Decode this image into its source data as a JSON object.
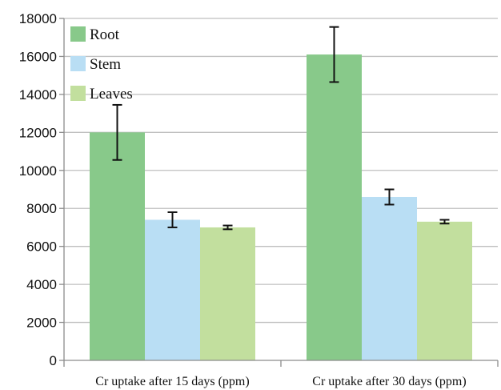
{
  "chart_data": {
    "type": "bar",
    "categories": [
      "Cr uptake after 15 days (ppm)",
      "Cr uptake after 30 days (ppm)"
    ],
    "series": [
      {
        "name": "Root",
        "values": [
          12000,
          16100
        ],
        "errors": [
          1450,
          1450
        ],
        "color": "#88c98a"
      },
      {
        "name": "Stem",
        "values": [
          7400,
          8600
        ],
        "errors": [
          400,
          400
        ],
        "color": "#b9def4"
      },
      {
        "name": "Leaves",
        "values": [
          7000,
          7300
        ],
        "errors": [
          100,
          100
        ],
        "color": "#c2df9e"
      }
    ],
    "ylim": [
      0,
      18000
    ],
    "yticks": [
      0,
      2000,
      4000,
      6000,
      8000,
      10000,
      12000,
      14000,
      16000,
      18000
    ],
    "grid": true,
    "legend_position": "top-left",
    "title": "",
    "xlabel": "",
    "ylabel": ""
  }
}
